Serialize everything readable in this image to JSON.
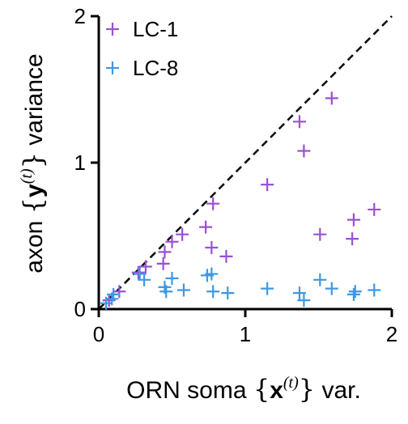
{
  "chart_data": {
    "type": "scatter",
    "xlabel": {
      "prefix": "ORN soma ",
      "open": "{",
      "var": "x",
      "sup": "(t)",
      "close": "}",
      "suffix": " var."
    },
    "ylabel": {
      "prefix": "axon ",
      "open": "{",
      "var": "y",
      "sup": "(t)",
      "close": "}",
      "suffix": " variance"
    },
    "xlim": [
      0,
      2
    ],
    "ylim": [
      0,
      2
    ],
    "xticks": [
      "0",
      "1",
      "2"
    ],
    "yticks": [
      "0",
      "1",
      "2"
    ],
    "grid": false,
    "legend_position": "top-left",
    "reference_line": "identity (dashed)",
    "marker": "plus",
    "series": [
      {
        "name": "LC-1",
        "color": "#9b4fd6",
        "points": [
          [
            0.07,
            0.06
          ],
          [
            0.14,
            0.12
          ],
          [
            0.27,
            0.25
          ],
          [
            0.32,
            0.29
          ],
          [
            0.44,
            0.31
          ],
          [
            0.45,
            0.39
          ],
          [
            0.5,
            0.46
          ],
          [
            0.57,
            0.51
          ],
          [
            0.73,
            0.56
          ],
          [
            0.77,
            0.42
          ],
          [
            0.78,
            0.72
          ],
          [
            0.87,
            0.36
          ],
          [
            1.15,
            0.85
          ],
          [
            1.37,
            1.28
          ],
          [
            1.4,
            1.08
          ],
          [
            1.59,
            1.44
          ],
          [
            1.51,
            0.51
          ],
          [
            1.73,
            0.48
          ],
          [
            1.74,
            0.61
          ],
          [
            1.88,
            0.68
          ]
        ]
      },
      {
        "name": "LC-8",
        "color": "#3d98e6",
        "points": [
          [
            0.05,
            0.04
          ],
          [
            0.09,
            0.07
          ],
          [
            0.1,
            0.1
          ],
          [
            0.28,
            0.24
          ],
          [
            0.31,
            0.2
          ],
          [
            0.45,
            0.15
          ],
          [
            0.46,
            0.12
          ],
          [
            0.5,
            0.21
          ],
          [
            0.58,
            0.13
          ],
          [
            0.74,
            0.23
          ],
          [
            0.77,
            0.24
          ],
          [
            0.78,
            0.12
          ],
          [
            0.88,
            0.11
          ],
          [
            1.15,
            0.14
          ],
          [
            1.37,
            0.11
          ],
          [
            1.4,
            0.06
          ],
          [
            1.51,
            0.2
          ],
          [
            1.59,
            0.14
          ],
          [
            1.74,
            0.1
          ],
          [
            1.75,
            0.12
          ],
          [
            1.88,
            0.13
          ]
        ]
      }
    ]
  }
}
